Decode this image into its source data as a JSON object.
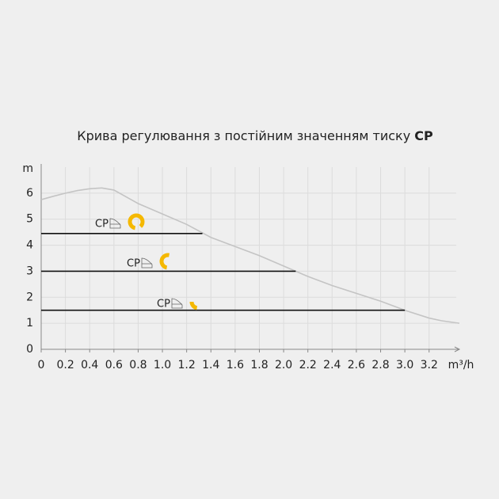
{
  "chart_data": {
    "type": "line",
    "title": "Крива регулювання з постійним значенням тиску",
    "title_emphasis": "CP",
    "y_label": "m",
    "x_label": "m³/h",
    "xlim": [
      0,
      3.45
    ],
    "ylim": [
      0,
      7
    ],
    "xticks": [
      0,
      0.2,
      0.4,
      0.6,
      0.8,
      {
        "value": 1,
        "label": "1.0"
      },
      1.2,
      1.4,
      1.6,
      1.8,
      {
        "value": 2,
        "label": "2.0"
      },
      2.2,
      2.4,
      2.6,
      2.8,
      {
        "value": 3,
        "label": "3.0"
      },
      3.2
    ],
    "yticks": [
      0,
      1,
      2,
      3,
      4,
      5,
      6
    ],
    "grid": true,
    "curve": {
      "color": "#c4c4c4",
      "x": [
        0,
        0.1,
        0.2,
        0.3,
        0.4,
        0.5,
        0.6,
        0.8,
        1.0,
        1.2,
        1.4,
        1.6,
        1.8,
        2.0,
        2.2,
        2.4,
        2.6,
        2.8,
        3.0,
        3.2,
        3.3,
        3.45
      ],
      "values": [
        5.75,
        5.88,
        6.0,
        6.1,
        6.17,
        6.2,
        6.12,
        5.6,
        5.2,
        4.8,
        4.3,
        3.95,
        3.6,
        3.2,
        2.8,
        2.45,
        2.15,
        1.85,
        1.5,
        1.2,
        1.1,
        1.0
      ]
    },
    "series": [
      {
        "name": "CP",
        "color": "#111111",
        "x": [
          0,
          1.33
        ],
        "values": [
          4.45,
          4.45
        ]
      },
      {
        "name": "CP",
        "color": "#111111",
        "x": [
          0,
          2.1
        ],
        "values": [
          3.0,
          3.0
        ]
      },
      {
        "name": "CP",
        "color": "#111111",
        "x": [
          0,
          3.0
        ],
        "values": [
          1.5,
          1.5
        ]
      }
    ]
  }
}
